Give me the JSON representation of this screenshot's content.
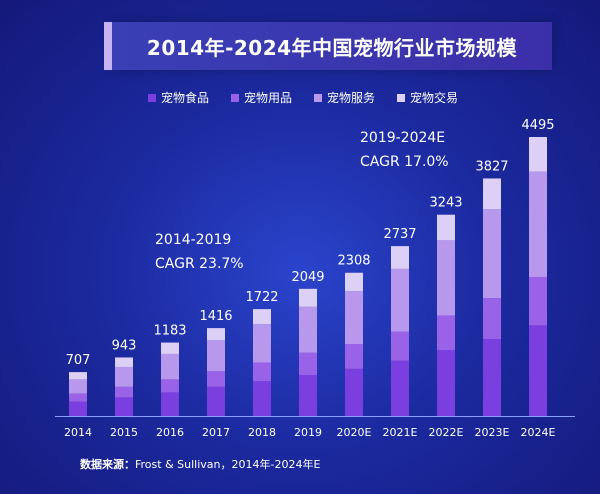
{
  "title": "2014年-2024年中国宠物行业市场规模",
  "legend": [
    {
      "label": "宠物食品",
      "color": "#7b3fe0"
    },
    {
      "label": "宠物用品",
      "color": "#9a62e6"
    },
    {
      "label": "宠物服务",
      "color": "#b898ec"
    },
    {
      "label": "宠物交易",
      "color": "#ddd0f7"
    }
  ],
  "annotations": [
    {
      "period": "2014-2019",
      "cagr": "CAGR 23.7%"
    },
    {
      "period": "2019-2024E",
      "cagr": "CAGR 17.0%"
    }
  ],
  "source": {
    "label": "数据来源：",
    "text": "Frost & Sullivan，2014年-2024年E"
  },
  "chart_data": {
    "type": "bar",
    "stacked": true,
    "categories": [
      "2014",
      "2015",
      "2016",
      "2017",
      "2018",
      "2019",
      "2020E",
      "2021E",
      "2022E",
      "2023E",
      "2024E"
    ],
    "totals": [
      707,
      943,
      1183,
      1416,
      1722,
      2049,
      2308,
      2737,
      3243,
      3827,
      4495
    ],
    "series": [
      {
        "name": "宠物食品",
        "color": "#7b3fe0",
        "values": [
          230,
          300,
          380,
          470,
          560,
          660,
          760,
          890,
          1060,
          1240,
          1460
        ]
      },
      {
        "name": "宠物用品",
        "color": "#9a62e6",
        "values": [
          130,
          170,
          210,
          250,
          300,
          360,
          400,
          470,
          560,
          660,
          780
        ]
      },
      {
        "name": "宠物服务",
        "color": "#b898ec",
        "values": [
          230,
          320,
          410,
          500,
          620,
          740,
          850,
          1010,
          1210,
          1430,
          1700
        ]
      },
      {
        "name": "宠物交易",
        "color": "#ddd0f7",
        "values": [
          117,
          153,
          183,
          196,
          242,
          289,
          298,
          367,
          413,
          497,
          555
        ]
      }
    ],
    "ylim": [
      0,
      4800
    ],
    "grid": false,
    "legend_position": "top"
  }
}
